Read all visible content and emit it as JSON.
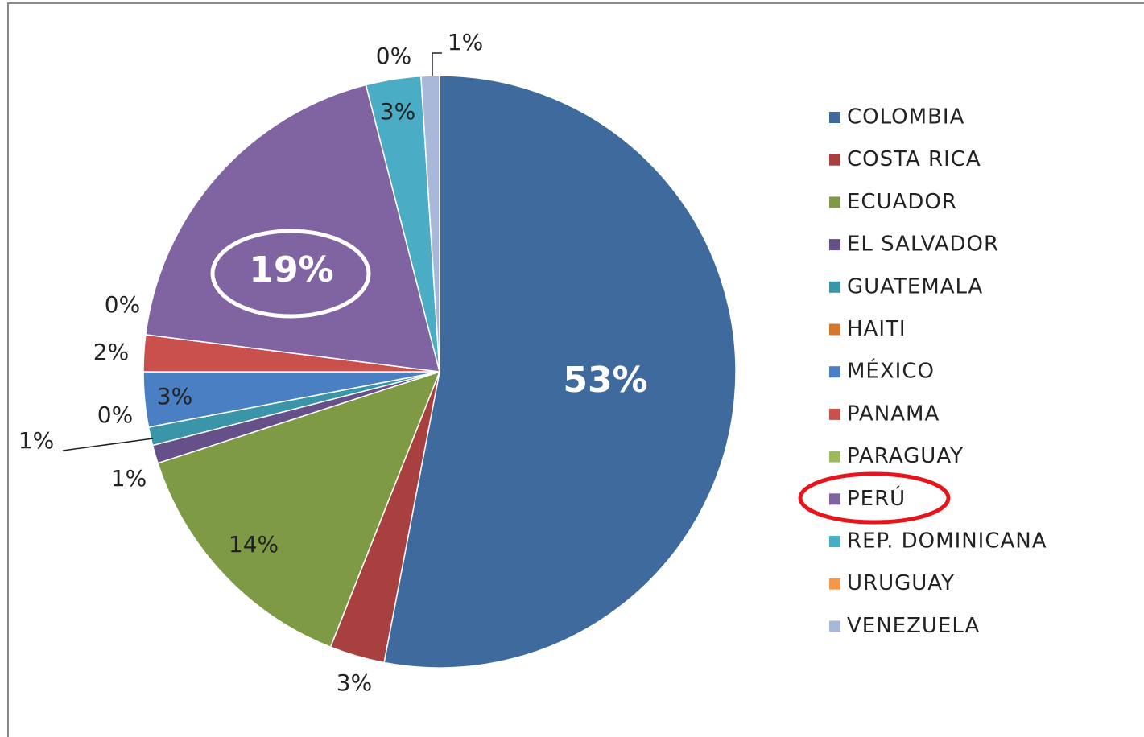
{
  "chart_data": {
    "type": "pie",
    "categories": [
      "COLOMBIA",
      "COSTA RICA",
      "ECUADOR",
      "EL SALVADOR",
      "GUATEMALA",
      "HAITI",
      "MÉXICO",
      "PANAMA",
      "PARAGUAY",
      "PERÚ",
      "REP. DOMINICANA",
      "URUGUAY",
      "VENEZUELA"
    ],
    "values": [
      53,
      3,
      14,
      1,
      1,
      0,
      3,
      2,
      0,
      19,
      3,
      0,
      1
    ],
    "value_labels": [
      "53%",
      "3%",
      "14%",
      "1%",
      "1%",
      "0%",
      "3%",
      "2%",
      "0%",
      "19%",
      "3%",
      "0%",
      "1%"
    ],
    "colors": [
      "#3f6a9d",
      "#a8403f",
      "#7f9a44",
      "#65508a",
      "#3a95a8",
      "#d6772e",
      "#4a7fc3",
      "#c9504c",
      "#9bbb59",
      "#8064a2",
      "#4bacc6",
      "#f79646",
      "#a9b8d8"
    ],
    "legend": "right"
  }
}
